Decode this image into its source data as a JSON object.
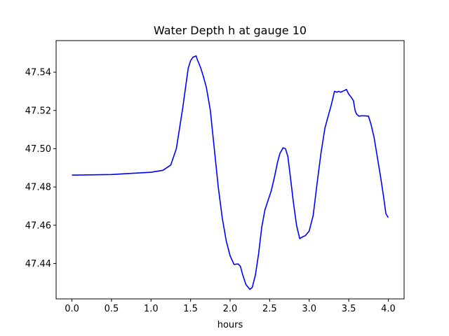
{
  "chart_data": {
    "type": "line",
    "title": "Water Depth h at gauge 10",
    "xlabel": "hours",
    "ylabel": "",
    "xlim": [
      -0.2,
      4.2
    ],
    "ylim": [
      47.4215,
      47.5565
    ],
    "xticks": [
      "0.0",
      "0.5",
      "1.0",
      "1.5",
      "2.0",
      "2.5",
      "3.0",
      "3.5",
      "4.0"
    ],
    "yticks": [
      "47.44",
      "47.46",
      "47.48",
      "47.50",
      "47.52",
      "47.54"
    ],
    "grid": false,
    "legend": "none",
    "series": [
      {
        "color": "#0000ff",
        "x": [
          0.0,
          0.5,
          1.0,
          1.15,
          1.25,
          1.32,
          1.4,
          1.47,
          1.5,
          1.53,
          1.57,
          1.59,
          1.6,
          1.63,
          1.66,
          1.7,
          1.75,
          1.8,
          1.85,
          1.9,
          1.95,
          2.0,
          2.05,
          2.1,
          2.13,
          2.16,
          2.2,
          2.25,
          2.28,
          2.32,
          2.36,
          2.4,
          2.44,
          2.48,
          2.52,
          2.56,
          2.6,
          2.63,
          2.67,
          2.7,
          2.73,
          2.76,
          2.8,
          2.84,
          2.88,
          2.92,
          2.95,
          3.0,
          3.05,
          3.1,
          3.15,
          3.2,
          3.24,
          3.28,
          3.32,
          3.35,
          3.37,
          3.4,
          3.42,
          3.45,
          3.47,
          3.5,
          3.53,
          3.56,
          3.58,
          3.6,
          3.63,
          3.66,
          3.7,
          3.75,
          3.78,
          3.82,
          3.86,
          3.9,
          3.94,
          3.97,
          4.0
        ],
        "y": [
          47.4862,
          47.4865,
          47.4877,
          47.4887,
          47.4915,
          47.5,
          47.521,
          47.542,
          47.546,
          47.5478,
          47.5485,
          47.546,
          47.5452,
          47.542,
          47.538,
          47.532,
          47.52,
          47.5,
          47.48,
          47.464,
          47.452,
          47.444,
          47.4395,
          47.4398,
          47.4385,
          47.434,
          47.429,
          47.4265,
          47.4275,
          47.434,
          47.445,
          47.459,
          47.468,
          47.473,
          47.478,
          47.485,
          47.493,
          47.4975,
          47.5005,
          47.5,
          47.496,
          47.486,
          47.472,
          47.46,
          47.453,
          47.454,
          47.4545,
          47.457,
          47.465,
          47.482,
          47.498,
          47.511,
          47.517,
          47.523,
          47.53,
          47.5295,
          47.53,
          47.5295,
          47.53,
          47.5305,
          47.531,
          47.5285,
          47.527,
          47.525,
          47.52,
          47.518,
          47.517,
          47.5172,
          47.5172,
          47.517,
          47.513,
          47.506,
          47.496,
          47.486,
          47.475,
          47.466,
          47.464
        ]
      }
    ]
  }
}
